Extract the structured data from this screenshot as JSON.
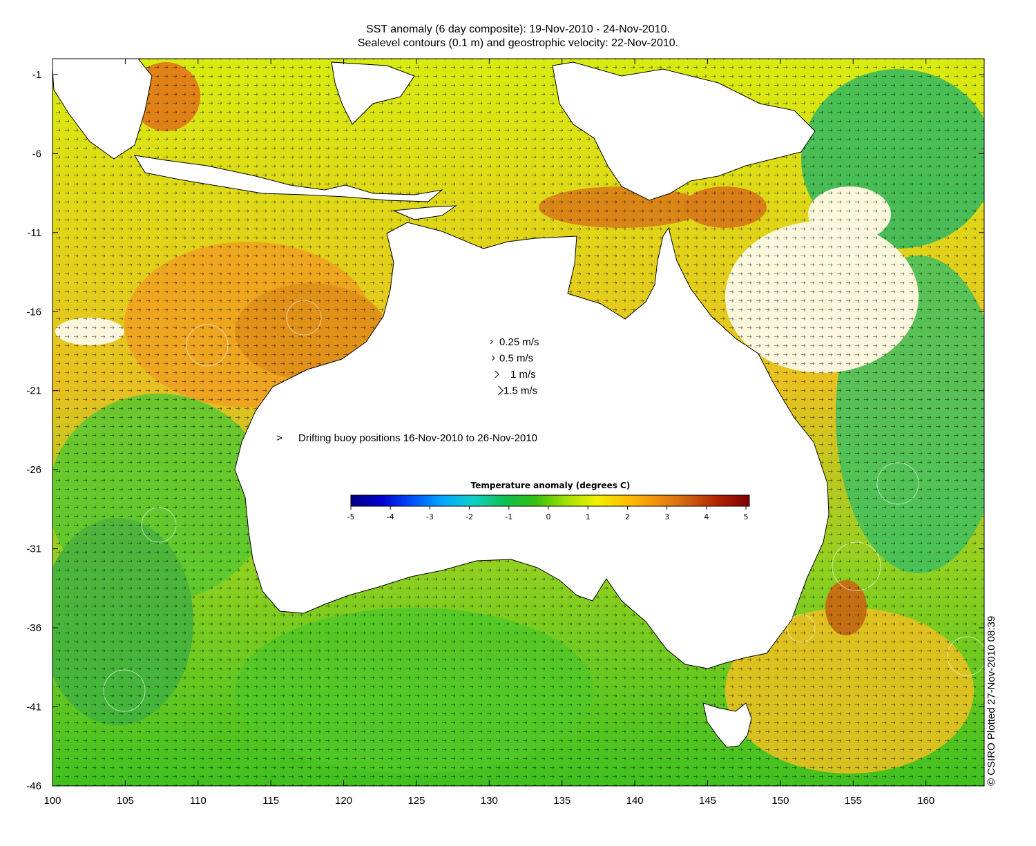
{
  "titles": {
    "line1": "SST anomaly (6 day composite): 19-Nov-2010 - 24-Nov-2010.",
    "line2": "Sealevel contours (0.1 m) and geostrophic velocity: 22-Nov-2010."
  },
  "axes": {
    "x_ticks": [
      100,
      105,
      110,
      115,
      120,
      125,
      130,
      135,
      140,
      145,
      150,
      155,
      160
    ],
    "y_ticks": [
      -1,
      -6,
      -11,
      -16,
      -21,
      -26,
      -31,
      -36,
      -41,
      -46
    ],
    "x_range": [
      100,
      164
    ],
    "y_range": [
      -46,
      0
    ]
  },
  "velocity_legend": [
    {
      "label": "0.25 m/s",
      "speed": 0.25
    },
    {
      "label": "0.5 m/s",
      "speed": 0.5
    },
    {
      "label": "1 m/s",
      "speed": 1
    },
    {
      "label": "1.5 m/s",
      "speed": 1.5
    }
  ],
  "buoy_legend": {
    "symbol": ">",
    "label": "Drifting buoy positions 16-Nov-2010 to 26-Nov-2010",
    "color": "#e040e0"
  },
  "colorbar": {
    "title": "Temperature anomaly (degrees C)",
    "ticks": [
      -5,
      -4,
      -3,
      -2,
      -1,
      0,
      1,
      2,
      3,
      4,
      5
    ],
    "range": [
      -5,
      5
    ],
    "colors": [
      "#00007f",
      "#0000d0",
      "#0050ff",
      "#00a8ff",
      "#10d0c8",
      "#10c050",
      "#30c010",
      "#a0e000",
      "#f0f000",
      "#ffc000",
      "#f09010",
      "#d06010",
      "#b02000",
      "#800000"
    ]
  },
  "credit": "© CSIRO Plotted 27-Nov-2010 08:39"
}
